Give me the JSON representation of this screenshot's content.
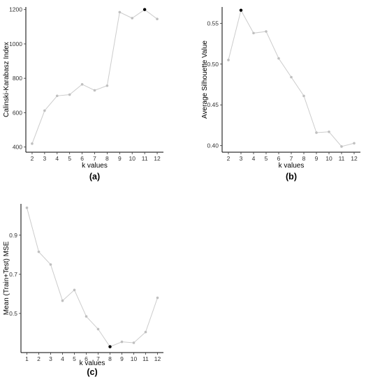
{
  "colors": {
    "line": "#cccccc",
    "point": "#bfbfbf",
    "highlight": "#000000"
  },
  "chart_data": [
    {
      "type": "line",
      "panel_label": "(a)",
      "xlabel": "k values",
      "ylabel": "Calinski-Karabasz Index",
      "x": [
        2,
        3,
        4,
        5,
        6,
        7,
        8,
        9,
        10,
        11,
        12
      ],
      "values": [
        420,
        612,
        698,
        705,
        765,
        730,
        757,
        1185,
        1150,
        1200,
        1145
      ],
      "highlight_x": 11,
      "xlim": [
        1.5,
        12.5
      ],
      "ylim": [
        370,
        1215
      ],
      "yticks": [
        400,
        600,
        800,
        1000,
        1200
      ],
      "grid": false
    },
    {
      "type": "line",
      "panel_label": "(b)",
      "xlabel": "k values",
      "ylabel": "Average Silhouette Value",
      "x": [
        2,
        3,
        4,
        5,
        6,
        7,
        8,
        9,
        10,
        11,
        12
      ],
      "values": [
        0.505,
        0.566,
        0.538,
        0.54,
        0.507,
        0.484,
        0.461,
        0.416,
        0.417,
        0.399,
        0.403
      ],
      "highlight_x": 3,
      "xlim": [
        1.5,
        12.5
      ],
      "ylim": [
        0.392,
        0.57
      ],
      "yticks": [
        0.4,
        0.45,
        0.5,
        0.55
      ],
      "ytick_labels": [
        "0.40",
        "0.45",
        "0.50",
        "0.55"
      ],
      "grid": false
    },
    {
      "type": "line",
      "panel_label": "(c)",
      "xlabel": "k values",
      "ylabel": "Mean (Train+Test) MSE",
      "x": [
        1,
        2,
        3,
        4,
        5,
        6,
        7,
        8,
        9,
        10,
        11,
        12
      ],
      "values": [
        1.04,
        0.815,
        0.75,
        0.565,
        0.62,
        0.485,
        0.42,
        0.33,
        0.355,
        0.35,
        0.405,
        0.58
      ],
      "highlight_x": 8,
      "xlim": [
        0.5,
        12.5
      ],
      "ylim": [
        0.3,
        1.06
      ],
      "yticks": [
        0.5,
        0.7,
        0.9
      ],
      "ytick_labels": [
        "0.5",
        "0.7",
        "0.9"
      ],
      "grid": false
    }
  ]
}
